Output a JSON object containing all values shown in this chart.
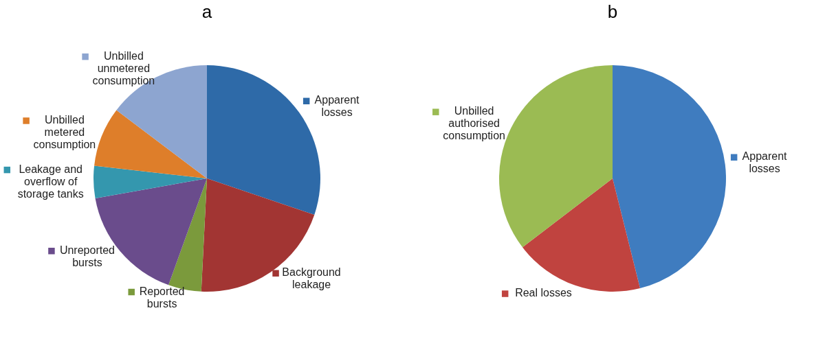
{
  "chart_data": [
    {
      "type": "pie",
      "title": "a",
      "categories": [
        "Apparent losses",
        "Background leakage",
        "Reported bursts",
        "Unreported bursts",
        "Leakage and overflow of storage tanks",
        "Unbilled metered consumption",
        "Unbilled unmetered consumption"
      ],
      "values": [
        30.2,
        20.6,
        4.7,
        16.7,
        4.6,
        8.5,
        14.7
      ],
      "colors": [
        "#2e6aa8",
        "#a23533",
        "#7b9a3c",
        "#6a4c8c",
        "#3497ae",
        "#de7e2a",
        "#8da5d0"
      ],
      "legend": "bottom left"
    },
    {
      "type": "pie",
      "title": "b",
      "categories": [
        "Apparent losses",
        "Real losses",
        "Unbilled authorised consumption"
      ],
      "values": [
        46.1,
        18.5,
        35.4
      ],
      "colors": [
        "#3f7cbf",
        "#c0433f",
        "#9bbb53"
      ],
      "legend": "right"
    }
  ]
}
